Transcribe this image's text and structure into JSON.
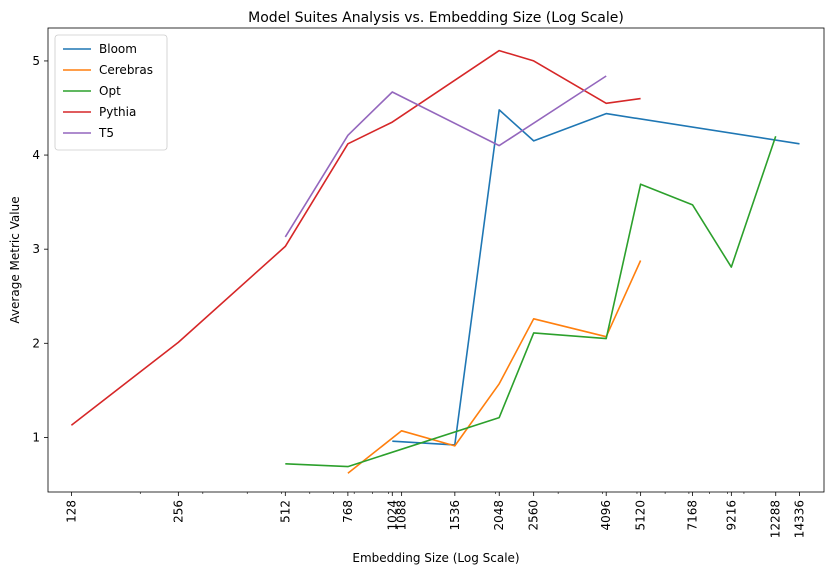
{
  "chart_data": {
    "type": "line",
    "title": "Model Suites Analysis vs. Embedding Size (Log Scale)",
    "xlabel": "Embedding Size (Log Scale)",
    "ylabel": "Average Metric Value",
    "x_scale": "log",
    "xlim": [
      110,
      16800
    ],
    "ylim": [
      0.42,
      5.35
    ],
    "x_ticks": [
      128,
      256,
      512,
      768,
      1024,
      1088,
      1536,
      2048,
      2560,
      4096,
      5120,
      7168,
      9216,
      12288,
      14336
    ],
    "y_ticks": [
      1,
      2,
      3,
      4,
      5
    ],
    "grid": false,
    "legend_position": "top-left",
    "series": [
      {
        "name": "Bloom",
        "color": "#1f77b4",
        "x": [
          1024,
          1536,
          2048,
          2560,
          4096,
          14336
        ],
        "y": [
          0.96,
          0.92,
          4.48,
          4.15,
          4.44,
          4.12
        ]
      },
      {
        "name": "Cerebras",
        "color": "#ff7f0e",
        "x": [
          768,
          1088,
          1536,
          2048,
          2560,
          4096,
          5120
        ],
        "y": [
          0.62,
          1.07,
          0.91,
          1.57,
          2.26,
          2.07,
          2.88
        ]
      },
      {
        "name": "Opt",
        "color": "#2ca02c",
        "x": [
          512,
          768,
          2048,
          2560,
          4096,
          5120,
          7168,
          9216,
          12288
        ],
        "y": [
          0.72,
          0.69,
          1.21,
          2.11,
          2.05,
          3.69,
          3.47,
          2.81,
          4.2
        ]
      },
      {
        "name": "Pythia",
        "color": "#d62728",
        "x": [
          128,
          256,
          512,
          768,
          1024,
          2048,
          2560,
          4096,
          5120
        ],
        "y": [
          1.13,
          2.01,
          3.03,
          4.12,
          4.35,
          5.11,
          5.0,
          4.55,
          4.6
        ]
      },
      {
        "name": "T5",
        "color": "#9467bd",
        "x": [
          512,
          768,
          1024,
          2048,
          4096
        ],
        "y": [
          3.13,
          4.21,
          4.67,
          4.1,
          4.84
        ]
      }
    ]
  }
}
